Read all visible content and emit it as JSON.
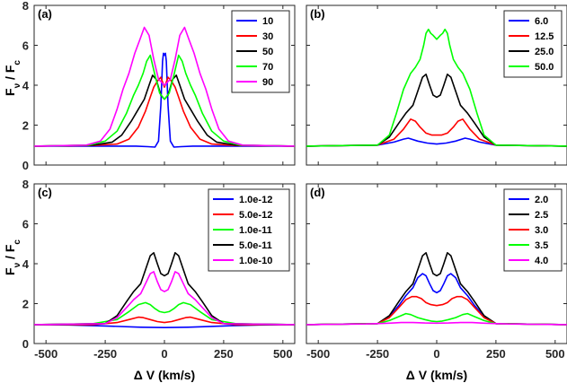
{
  "figure": {
    "xlabel": "Δ V (km/s)",
    "ylabel_main": "F",
    "ylabel_sub1": "ν",
    "ylabel_mid": " / F",
    "ylabel_sub2": "c"
  },
  "chart_data": [
    {
      "type": "line",
      "panel": "(a)",
      "xlim": [
        -550,
        550
      ],
      "ylim": [
        0,
        8
      ],
      "xticks": [
        -500,
        -250,
        0,
        250,
        500
      ],
      "xticklabels": [],
      "yticks": [
        0,
        2,
        4,
        6,
        8
      ],
      "yticklabels": [
        "0",
        "2",
        "4",
        "6",
        "8"
      ],
      "legend_position": "top-right",
      "series": [
        {
          "name": "10",
          "color": "#0000ff",
          "x": [
            -550,
            -200,
            -120,
            -70,
            -40,
            -25,
            -15,
            -8,
            -4,
            0,
            4,
            8,
            15,
            25,
            40,
            70,
            120,
            200,
            550
          ],
          "y": [
            0.95,
            0.95,
            0.95,
            0.92,
            0.9,
            1.2,
            3.0,
            5.2,
            5.6,
            5.5,
            5.6,
            5.2,
            3.0,
            1.2,
            0.9,
            0.92,
            0.95,
            0.95,
            0.95
          ]
        },
        {
          "name": "30",
          "color": "#ff0000",
          "x": [
            -550,
            -300,
            -200,
            -150,
            -110,
            -80,
            -60,
            -45,
            -30,
            -15,
            0,
            15,
            30,
            45,
            60,
            80,
            110,
            150,
            200,
            300,
            550
          ],
          "y": [
            0.95,
            0.98,
            1.05,
            1.3,
            1.9,
            2.7,
            3.4,
            3.9,
            4.2,
            4.4,
            3.9,
            4.4,
            4.2,
            3.9,
            3.4,
            2.7,
            1.9,
            1.3,
            1.05,
            0.98,
            0.95
          ]
        },
        {
          "name": "50",
          "color": "#000000",
          "x": [
            -550,
            -300,
            -220,
            -180,
            -140,
            -110,
            -85,
            -65,
            -50,
            -35,
            -15,
            0,
            15,
            35,
            50,
            65,
            85,
            110,
            140,
            180,
            220,
            300,
            550
          ],
          "y": [
            0.95,
            1.0,
            1.15,
            1.5,
            2.2,
            2.8,
            3.3,
            4.0,
            4.5,
            4.3,
            3.5,
            3.3,
            3.5,
            4.3,
            4.5,
            4.0,
            3.3,
            2.8,
            2.2,
            1.5,
            1.15,
            1.0,
            0.95
          ]
        },
        {
          "name": "70",
          "color": "#00ff00",
          "x": [
            -550,
            -320,
            -250,
            -200,
            -160,
            -130,
            -110,
            -90,
            -75,
            -60,
            -40,
            -20,
            0,
            20,
            40,
            60,
            75,
            90,
            110,
            130,
            160,
            200,
            250,
            320,
            550
          ],
          "y": [
            0.95,
            1.0,
            1.2,
            1.7,
            2.6,
            3.5,
            4.0,
            4.6,
            5.2,
            5.5,
            4.5,
            3.6,
            3.3,
            3.6,
            4.5,
            5.5,
            5.2,
            4.6,
            4.0,
            3.5,
            2.6,
            1.7,
            1.2,
            1.0,
            0.95
          ]
        },
        {
          "name": "90",
          "color": "#ff00ff",
          "x": [
            -550,
            -330,
            -270,
            -230,
            -200,
            -175,
            -150,
            -125,
            -100,
            -85,
            -65,
            -45,
            -25,
            0,
            25,
            45,
            65,
            85,
            100,
            125,
            150,
            175,
            200,
            230,
            270,
            330,
            550
          ],
          "y": [
            0.95,
            1.0,
            1.2,
            1.8,
            2.8,
            3.8,
            4.6,
            5.6,
            6.4,
            6.9,
            6.5,
            5.3,
            4.3,
            4.0,
            4.3,
            5.3,
            6.5,
            6.9,
            6.4,
            5.6,
            4.6,
            3.8,
            2.8,
            1.8,
            1.2,
            1.0,
            0.95
          ]
        }
      ]
    },
    {
      "type": "line",
      "panel": "(b)",
      "xlim": [
        -550,
        550
      ],
      "ylim": [
        0,
        8
      ],
      "xticks": [
        -500,
        -250,
        0,
        250,
        500
      ],
      "xticklabels": [],
      "yticks": [
        0,
        2,
        4,
        6,
        8
      ],
      "yticklabels": [],
      "legend_position": "top-right",
      "series": [
        {
          "name": "6.0",
          "color": "#0000ff",
          "x": [
            -550,
            -250,
            -180,
            -140,
            -120,
            -80,
            -40,
            0,
            40,
            80,
            120,
            140,
            180,
            250,
            550
          ],
          "y": [
            0.95,
            1.0,
            1.15,
            1.3,
            1.35,
            1.2,
            1.1,
            1.05,
            1.1,
            1.2,
            1.35,
            1.3,
            1.15,
            1.0,
            0.95
          ]
        },
        {
          "name": "12.5",
          "color": "#ff0000",
          "x": [
            -550,
            -250,
            -180,
            -140,
            -110,
            -90,
            -70,
            -45,
            -20,
            0,
            20,
            45,
            70,
            90,
            110,
            140,
            180,
            250,
            550
          ],
          "y": [
            0.95,
            1.0,
            1.3,
            1.8,
            2.3,
            2.2,
            1.9,
            1.6,
            1.5,
            1.5,
            1.5,
            1.6,
            1.9,
            2.2,
            2.3,
            1.8,
            1.3,
            1.0,
            0.95
          ]
        },
        {
          "name": "25.0",
          "color": "#000000",
          "x": [
            -550,
            -250,
            -200,
            -160,
            -130,
            -100,
            -80,
            -60,
            -45,
            -30,
            -15,
            0,
            15,
            30,
            45,
            60,
            80,
            100,
            130,
            160,
            200,
            250,
            550
          ],
          "y": [
            0.95,
            1.0,
            1.4,
            2.1,
            2.6,
            3.0,
            3.7,
            4.4,
            4.55,
            4.0,
            3.5,
            3.4,
            3.5,
            4.0,
            4.55,
            4.4,
            3.7,
            3.0,
            2.6,
            2.1,
            1.4,
            1.0,
            0.95
          ]
        },
        {
          "name": "50.0",
          "color": "#00ff00",
          "x": [
            -550,
            -250,
            -200,
            -170,
            -140,
            -110,
            -90,
            -70,
            -55,
            -45,
            -35,
            -25,
            -15,
            0,
            15,
            25,
            35,
            45,
            55,
            70,
            90,
            110,
            140,
            170,
            200,
            250,
            550
          ],
          "y": [
            0.95,
            1.0,
            1.5,
            2.6,
            3.8,
            4.6,
            4.9,
            5.3,
            6.0,
            6.6,
            6.8,
            6.6,
            6.5,
            6.3,
            6.5,
            6.6,
            6.8,
            6.6,
            6.0,
            5.3,
            4.9,
            4.6,
            3.8,
            2.6,
            1.5,
            1.0,
            0.95
          ]
        }
      ]
    },
    {
      "type": "line",
      "panel": "(c)",
      "xlim": [
        -550,
        550
      ],
      "ylim": [
        0,
        8
      ],
      "xticks": [
        -500,
        -250,
        0,
        250,
        500
      ],
      "xticklabels": [
        "-500",
        "-250",
        "0",
        "250",
        "500"
      ],
      "yticks": [
        0,
        2,
        4,
        6,
        8
      ],
      "yticklabels": [
        "0",
        "2",
        "4",
        "6",
        "8"
      ],
      "legend_position": "top-right",
      "series": [
        {
          "name": "1.0e-12",
          "color": "#0000ff",
          "x": [
            -550,
            -400,
            -250,
            -100,
            0,
            100,
            250,
            400,
            550
          ],
          "y": [
            0.95,
            0.93,
            0.88,
            0.82,
            0.8,
            0.82,
            0.88,
            0.93,
            0.95
          ]
        },
        {
          "name": "5.0e-12",
          "color": "#ff0000",
          "x": [
            -550,
            -300,
            -200,
            -150,
            -110,
            -90,
            -60,
            -30,
            0,
            30,
            60,
            90,
            110,
            150,
            200,
            300,
            550
          ],
          "y": [
            0.95,
            0.95,
            1.05,
            1.2,
            1.32,
            1.3,
            1.2,
            1.1,
            1.05,
            1.1,
            1.2,
            1.3,
            1.32,
            1.2,
            1.05,
            0.95,
            0.95
          ]
        },
        {
          "name": "1.0e-11",
          "color": "#00ff00",
          "x": [
            -550,
            -300,
            -200,
            -150,
            -110,
            -80,
            -60,
            -40,
            -20,
            0,
            20,
            40,
            60,
            80,
            110,
            150,
            200,
            300,
            550
          ],
          "y": [
            0.95,
            1.0,
            1.2,
            1.6,
            1.95,
            2.05,
            1.95,
            1.75,
            1.6,
            1.55,
            1.6,
            1.75,
            1.95,
            2.05,
            1.95,
            1.6,
            1.2,
            1.0,
            0.95
          ]
        },
        {
          "name": "5.0e-11",
          "color": "#000000",
          "x": [
            -550,
            -250,
            -200,
            -160,
            -130,
            -100,
            -80,
            -60,
            -45,
            -30,
            -15,
            0,
            15,
            30,
            45,
            60,
            80,
            100,
            130,
            160,
            200,
            250,
            550
          ],
          "y": [
            0.95,
            1.0,
            1.4,
            2.1,
            2.6,
            3.0,
            3.7,
            4.4,
            4.55,
            4.0,
            3.5,
            3.4,
            3.5,
            4.0,
            4.55,
            4.4,
            3.7,
            3.0,
            2.6,
            2.1,
            1.4,
            1.0,
            0.95
          ]
        },
        {
          "name": "1.0e-10",
          "color": "#ff00ff",
          "x": [
            -550,
            -250,
            -200,
            -160,
            -130,
            -100,
            -80,
            -60,
            -45,
            -30,
            -15,
            0,
            15,
            30,
            45,
            60,
            80,
            100,
            130,
            160,
            200,
            250,
            550
          ],
          "y": [
            0.95,
            1.0,
            1.3,
            1.8,
            2.2,
            2.5,
            3.0,
            3.5,
            3.6,
            3.1,
            2.7,
            2.6,
            2.7,
            3.1,
            3.6,
            3.5,
            3.0,
            2.5,
            2.2,
            1.8,
            1.3,
            1.0,
            0.95
          ]
        }
      ]
    },
    {
      "type": "line",
      "panel": "(d)",
      "xlim": [
        -550,
        550
      ],
      "ylim": [
        0,
        8
      ],
      "xticks": [
        -500,
        -250,
        0,
        250,
        500
      ],
      "xticklabels": [
        "-500",
        "-250",
        "0",
        "250",
        "500"
      ],
      "yticks": [
        0,
        2,
        4,
        6,
        8
      ],
      "yticklabels": [],
      "legend_position": "top-right",
      "series": [
        {
          "name": "2.0",
          "color": "#0000ff",
          "x": [
            -550,
            -250,
            -200,
            -160,
            -130,
            -100,
            -80,
            -60,
            -45,
            -30,
            -15,
            0,
            15,
            30,
            45,
            60,
            80,
            100,
            130,
            160,
            200,
            250,
            550
          ],
          "y": [
            0.95,
            1.0,
            1.35,
            1.9,
            2.4,
            2.8,
            3.3,
            3.5,
            3.4,
            3.0,
            2.65,
            2.55,
            2.65,
            3.0,
            3.4,
            3.5,
            3.3,
            2.8,
            2.4,
            1.9,
            1.35,
            1.0,
            0.95
          ]
        },
        {
          "name": "2.5",
          "color": "#000000",
          "x": [
            -550,
            -250,
            -200,
            -160,
            -130,
            -100,
            -80,
            -60,
            -45,
            -30,
            -15,
            0,
            15,
            30,
            45,
            60,
            80,
            100,
            130,
            160,
            200,
            250,
            550
          ],
          "y": [
            0.95,
            1.0,
            1.4,
            2.1,
            2.6,
            3.0,
            3.7,
            4.4,
            4.55,
            4.0,
            3.5,
            3.4,
            3.5,
            4.0,
            4.55,
            4.4,
            3.7,
            3.0,
            2.6,
            2.1,
            1.4,
            1.0,
            0.95
          ]
        },
        {
          "name": "3.0",
          "color": "#ff0000",
          "x": [
            -550,
            -250,
            -200,
            -160,
            -130,
            -105,
            -85,
            -65,
            -45,
            -25,
            0,
            25,
            45,
            65,
            85,
            105,
            130,
            160,
            200,
            250,
            550
          ],
          "y": [
            0.95,
            1.0,
            1.3,
            1.8,
            2.2,
            2.35,
            2.35,
            2.25,
            2.05,
            1.95,
            1.9,
            1.95,
            2.05,
            2.25,
            2.35,
            2.35,
            2.2,
            1.8,
            1.3,
            1.0,
            0.95
          ]
        },
        {
          "name": "3.5",
          "color": "#00ff00",
          "x": [
            -550,
            -250,
            -200,
            -160,
            -130,
            -110,
            -80,
            -50,
            -20,
            0,
            20,
            50,
            80,
            110,
            130,
            160,
            200,
            250,
            550
          ],
          "y": [
            0.95,
            1.0,
            1.15,
            1.35,
            1.5,
            1.45,
            1.3,
            1.2,
            1.12,
            1.1,
            1.12,
            1.2,
            1.3,
            1.45,
            1.5,
            1.35,
            1.15,
            1.0,
            0.95
          ]
        },
        {
          "name": "4.0",
          "color": "#ff00ff",
          "x": [
            -550,
            -300,
            -200,
            -150,
            -100,
            -50,
            0,
            50,
            100,
            150,
            200,
            300,
            550
          ],
          "y": [
            0.95,
            0.98,
            1.02,
            1.05,
            1.05,
            1.03,
            1.02,
            1.03,
            1.05,
            1.05,
            1.02,
            0.98,
            0.95
          ]
        }
      ]
    }
  ]
}
